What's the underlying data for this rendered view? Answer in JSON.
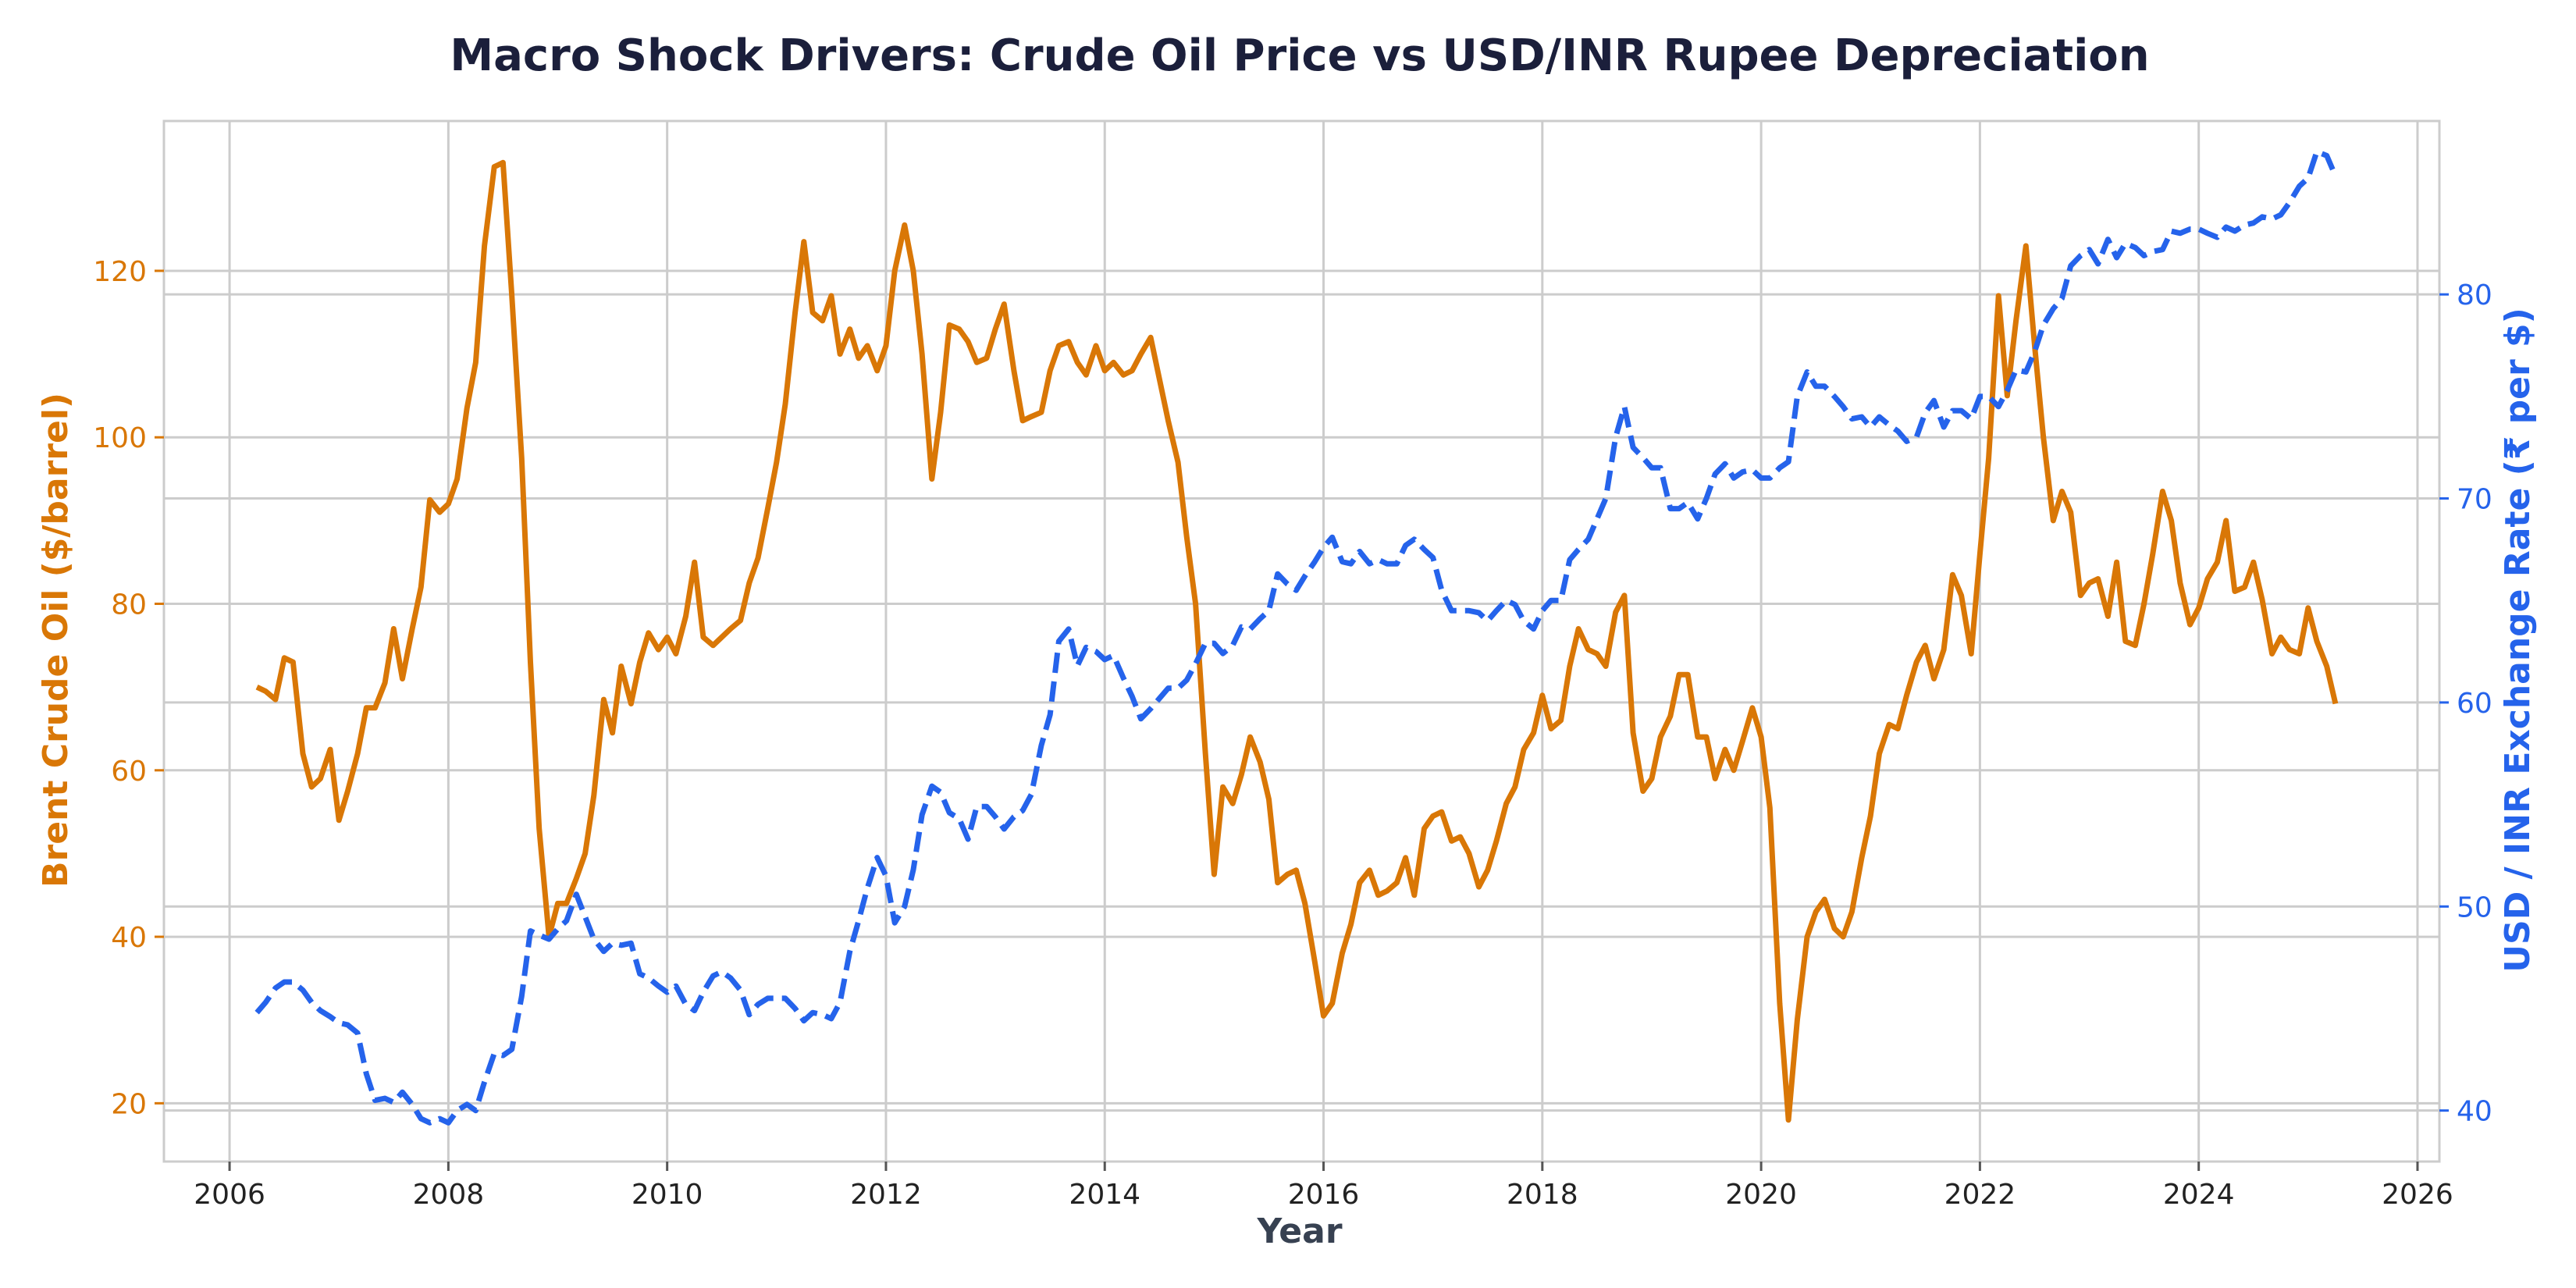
{
  "chart_data": {
    "type": "line",
    "title": "Macro Shock Drivers: Crude Oil Price vs USD/INR Rupee Depreciation",
    "xlabel": "Year",
    "ylabel_left": "Brent Crude Oil ($/barrel)",
    "ylabel_right": "USD / INR Exchange Rate (₹ per $)",
    "xlim": [
      2005.4,
      2026.2
    ],
    "ylim_left": [
      13,
      138
    ],
    "ylim_right": [
      37.5,
      88.5
    ],
    "x_ticks": [
      2006,
      2008,
      2010,
      2012,
      2014,
      2016,
      2018,
      2020,
      2022,
      2024,
      2026
    ],
    "y_ticks_left": [
      20,
      40,
      60,
      80,
      100,
      120
    ],
    "y_ticks_right": [
      40,
      50,
      60,
      70,
      80
    ],
    "grid": true,
    "colors": {
      "oil": "#d97706",
      "inr": "#2563eb",
      "title": "#1b1f3b",
      "xlabel": "#374151",
      "grid": "#cccccc",
      "spine": "#cccccc"
    },
    "series": [
      {
        "name": "Brent Crude Oil ($/barrel)",
        "axis": "left",
        "style": "solid",
        "x": [
          2006.25,
          2006.33,
          2006.42,
          2006.5,
          2006.58,
          2006.67,
          2006.75,
          2006.83,
          2006.92,
          2007.0,
          2007.08,
          2007.17,
          2007.25,
          2007.33,
          2007.42,
          2007.5,
          2007.58,
          2007.67,
          2007.75,
          2007.83,
          2007.92,
          2008.0,
          2008.08,
          2008.17,
          2008.25,
          2008.33,
          2008.42,
          2008.5,
          2008.58,
          2008.67,
          2008.75,
          2008.83,
          2008.92,
          2009.0,
          2009.08,
          2009.17,
          2009.25,
          2009.33,
          2009.42,
          2009.5,
          2009.58,
          2009.67,
          2009.75,
          2009.83,
          2009.92,
          2010.0,
          2010.08,
          2010.17,
          2010.25,
          2010.33,
          2010.42,
          2010.5,
          2010.58,
          2010.67,
          2010.75,
          2010.83,
          2010.92,
          2011.0,
          2011.08,
          2011.17,
          2011.25,
          2011.33,
          2011.42,
          2011.5,
          2011.58,
          2011.67,
          2011.75,
          2011.83,
          2011.92,
          2012.0,
          2012.08,
          2012.17,
          2012.25,
          2012.33,
          2012.42,
          2012.5,
          2012.58,
          2012.67,
          2012.75,
          2012.83,
          2012.92,
          2013.0,
          2013.08,
          2013.17,
          2013.25,
          2013.33,
          2013.42,
          2013.5,
          2013.58,
          2013.67,
          2013.75,
          2013.83,
          2013.92,
          2014.0,
          2014.08,
          2014.17,
          2014.25,
          2014.33,
          2014.42,
          2014.5,
          2014.58,
          2014.67,
          2014.75,
          2014.83,
          2014.92,
          2015.0,
          2015.08,
          2015.17,
          2015.25,
          2015.33,
          2015.42,
          2015.5,
          2015.58,
          2015.67,
          2015.75,
          2015.83,
          2015.92,
          2016.0,
          2016.08,
          2016.17,
          2016.25,
          2016.33,
          2016.42,
          2016.5,
          2016.58,
          2016.67,
          2016.75,
          2016.83,
          2016.92,
          2017.0,
          2017.08,
          2017.17,
          2017.25,
          2017.33,
          2017.42,
          2017.5,
          2017.58,
          2017.67,
          2017.75,
          2017.83,
          2017.92,
          2018.0,
          2018.08,
          2018.17,
          2018.25,
          2018.33,
          2018.42,
          2018.5,
          2018.58,
          2018.67,
          2018.75,
          2018.83,
          2018.92,
          2019.0,
          2019.08,
          2019.17,
          2019.25,
          2019.33,
          2019.42,
          2019.5,
          2019.58,
          2019.67,
          2019.75,
          2019.83,
          2019.92,
          2020.0,
          2020.08,
          2020.17,
          2020.25,
          2020.33,
          2020.42,
          2020.5,
          2020.58,
          2020.67,
          2020.75,
          2020.83,
          2020.92,
          2021.0,
          2021.08,
          2021.17,
          2021.25,
          2021.33,
          2021.42,
          2021.5,
          2021.58,
          2021.67,
          2021.75,
          2021.83,
          2021.92,
          2022.0,
          2022.08,
          2022.17,
          2022.25,
          2022.33,
          2022.42,
          2022.5,
          2022.58,
          2022.67,
          2022.75,
          2022.83,
          2022.92,
          2023.0,
          2023.08,
          2023.17,
          2023.25,
          2023.33,
          2023.42,
          2023.5,
          2023.58,
          2023.67,
          2023.75,
          2023.83,
          2023.92,
          2024.0,
          2024.08,
          2024.17,
          2024.25,
          2024.33,
          2024.42,
          2024.5,
          2024.58,
          2024.67,
          2024.75,
          2024.83,
          2024.92,
          2025.0,
          2025.08,
          2025.17,
          2025.25
        ],
        "y": [
          70,
          69.5,
          68.5,
          73.5,
          73,
          62,
          58,
          59,
          62.5,
          54,
          57.5,
          62,
          67.5,
          67.5,
          70.5,
          77,
          71,
          77,
          82,
          92.5,
          91,
          92,
          95,
          103.5,
          109,
          123,
          132.5,
          133,
          117,
          97.5,
          73,
          53,
          40,
          44,
          44,
          47,
          50,
          57,
          68.5,
          64.5,
          72.5,
          68,
          73,
          76.5,
          74.5,
          76,
          74,
          78.5,
          85,
          76,
          75,
          76,
          77,
          78,
          82.5,
          85.5,
          91.5,
          97,
          104,
          115,
          123.5,
          115,
          114,
          117,
          110,
          113,
          109.5,
          111,
          108,
          111,
          120,
          125.5,
          120,
          110,
          95,
          103,
          113.5,
          113,
          111.5,
          109,
          109.5,
          113,
          116,
          108,
          102,
          102.5,
          103,
          108,
          111,
          111.5,
          109,
          107.5,
          111,
          108,
          109,
          107.5,
          108,
          110,
          112,
          107,
          102,
          97,
          88,
          80,
          62,
          47.5,
          58,
          56,
          59.5,
          64,
          61,
          56.5,
          46.5,
          47.5,
          48,
          44,
          37,
          30.5,
          32,
          38,
          41.5,
          46.5,
          48,
          45,
          45.5,
          46.5,
          49.5,
          45,
          53,
          54.5,
          55,
          51.5,
          52,
          50,
          46,
          48,
          51.5,
          56,
          58,
          62.5,
          64.5,
          69,
          65,
          66,
          72.5,
          77,
          74.5,
          74,
          72.5,
          79,
          81,
          64.5,
          57.5,
          59,
          64,
          66.5,
          71.5,
          71.5,
          64,
          64,
          59,
          62.5,
          60,
          63.5,
          67.5,
          64,
          55.5,
          32,
          18,
          30,
          40,
          43,
          44.5,
          41,
          40,
          43,
          49.5,
          54.5,
          62,
          65.5,
          65,
          69,
          73,
          75,
          71,
          74.5,
          83.5,
          81,
          74,
          86,
          97.5,
          117,
          105,
          114,
          123,
          111,
          100,
          90,
          93.5,
          91,
          81,
          82.5,
          83,
          78.5,
          85,
          75.5,
          75,
          80,
          86,
          93.5,
          90,
          82.5,
          77.5,
          79.5,
          83,
          85,
          90,
          81.5,
          82,
          85,
          80.5,
          74,
          76,
          74.5,
          74,
          79.5,
          75.5,
          72.5,
          68
        ]
      },
      {
        "name": "USD / INR Exchange Rate (₹ per $)",
        "axis": "right",
        "style": "dashed",
        "x": [
          2006.25,
          2006.33,
          2006.42,
          2006.5,
          2006.58,
          2006.67,
          2006.75,
          2006.83,
          2006.92,
          2007.0,
          2007.08,
          2007.17,
          2007.25,
          2007.33,
          2007.42,
          2007.5,
          2007.58,
          2007.67,
          2007.75,
          2007.83,
          2007.92,
          2008.0,
          2008.08,
          2008.17,
          2008.25,
          2008.33,
          2008.42,
          2008.5,
          2008.58,
          2008.67,
          2008.75,
          2008.83,
          2008.92,
          2009.0,
          2009.08,
          2009.17,
          2009.25,
          2009.33,
          2009.42,
          2009.5,
          2009.58,
          2009.67,
          2009.75,
          2009.83,
          2009.92,
          2010.0,
          2010.08,
          2010.17,
          2010.25,
          2010.33,
          2010.42,
          2010.5,
          2010.58,
          2010.67,
          2010.75,
          2010.83,
          2010.92,
          2011.0,
          2011.08,
          2011.17,
          2011.25,
          2011.33,
          2011.42,
          2011.5,
          2011.58,
          2011.67,
          2011.75,
          2011.83,
          2011.92,
          2012.0,
          2012.08,
          2012.17,
          2012.25,
          2012.33,
          2012.42,
          2012.5,
          2012.58,
          2012.67,
          2012.75,
          2012.83,
          2012.92,
          2013.0,
          2013.08,
          2013.17,
          2013.25,
          2013.33,
          2013.42,
          2013.5,
          2013.58,
          2013.67,
          2013.75,
          2013.83,
          2013.92,
          2014.0,
          2014.08,
          2014.17,
          2014.25,
          2014.33,
          2014.42,
          2014.5,
          2014.58,
          2014.67,
          2014.75,
          2014.83,
          2014.92,
          2015.0,
          2015.08,
          2015.17,
          2015.25,
          2015.33,
          2015.42,
          2015.5,
          2015.58,
          2015.67,
          2015.75,
          2015.83,
          2015.92,
          2016.0,
          2016.08,
          2016.17,
          2016.25,
          2016.33,
          2016.42,
          2016.5,
          2016.58,
          2016.67,
          2016.75,
          2016.83,
          2016.92,
          2017.0,
          2017.08,
          2017.17,
          2017.25,
          2017.33,
          2017.42,
          2017.5,
          2017.58,
          2017.67,
          2017.75,
          2017.83,
          2017.92,
          2018.0,
          2018.08,
          2018.17,
          2018.25,
          2018.33,
          2018.42,
          2018.5,
          2018.58,
          2018.67,
          2018.75,
          2018.83,
          2018.92,
          2019.0,
          2019.08,
          2019.17,
          2019.25,
          2019.33,
          2019.42,
          2019.5,
          2019.58,
          2019.67,
          2019.75,
          2019.83,
          2019.92,
          2020.0,
          2020.08,
          2020.17,
          2020.25,
          2020.33,
          2020.42,
          2020.5,
          2020.58,
          2020.67,
          2020.75,
          2020.83,
          2020.92,
          2021.0,
          2021.08,
          2021.17,
          2021.25,
          2021.33,
          2021.42,
          2021.5,
          2021.58,
          2021.67,
          2021.75,
          2021.83,
          2021.92,
          2022.0,
          2022.08,
          2022.17,
          2022.25,
          2022.33,
          2022.42,
          2022.5,
          2022.58,
          2022.67,
          2022.75,
          2022.83,
          2022.92,
          2023.0,
          2023.08,
          2023.17,
          2023.25,
          2023.33,
          2023.42,
          2023.5,
          2023.58,
          2023.67,
          2023.75,
          2023.83,
          2023.92,
          2024.0,
          2024.08,
          2024.17,
          2024.25,
          2024.33,
          2024.42,
          2024.5,
          2024.58,
          2024.67,
          2024.75,
          2024.83,
          2024.92,
          2025.0,
          2025.08,
          2025.17,
          2025.25
        ],
        "y": [
          44.8,
          45.3,
          46,
          46.3,
          46.3,
          45.9,
          45.3,
          44.9,
          44.6,
          44.3,
          44.2,
          43.8,
          41.8,
          40.5,
          40.6,
          40.4,
          40.9,
          40.3,
          39.6,
          39.4,
          39.6,
          39.4,
          40,
          40.3,
          40,
          41.4,
          42.8,
          42.7,
          43,
          45.6,
          48.8,
          48.6,
          48.4,
          48.9,
          49.3,
          50.6,
          49.5,
          48.4,
          47.8,
          48.2,
          48.1,
          48.2,
          46.7,
          46.5,
          46.1,
          45.8,
          46.1,
          45.2,
          44.9,
          45.8,
          46.6,
          46.8,
          46.5,
          45.9,
          44.7,
          45.2,
          45.5,
          45.5,
          45.5,
          45,
          44.4,
          44.8,
          44.7,
          44.5,
          45.3,
          47.8,
          49.3,
          50.9,
          52.4,
          51.5,
          49.2,
          50,
          51.8,
          54.5,
          55.9,
          55.6,
          54.6,
          54.3,
          53.3,
          54.9,
          54.9,
          54.4,
          53.8,
          54.4,
          54.7,
          55.5,
          57.9,
          59.4,
          63,
          63.6,
          61.8,
          62.7,
          62.5,
          62.1,
          62.3,
          61.2,
          60.3,
          59.2,
          59.7,
          60.2,
          60.7,
          60.7,
          61.1,
          61.9,
          62.9,
          62.9,
          62.4,
          62.8,
          63.7,
          63.6,
          64.1,
          64.5,
          66.3,
          65.8,
          65.5,
          66.2,
          66.9,
          67.6,
          68.1,
          66.9,
          66.8,
          67.4,
          66.8,
          67,
          66.8,
          66.8,
          67.7,
          68,
          67.5,
          67.1,
          65.5,
          64.5,
          64.5,
          64.5,
          64.4,
          64,
          64.5,
          65,
          64.8,
          64,
          63.6,
          64.5,
          65,
          65,
          67,
          67.5,
          68,
          69,
          70,
          73,
          74.5,
          72.5,
          72,
          71.5,
          71.5,
          69.5,
          69.5,
          69.8,
          69,
          70,
          71.2,
          71.7,
          71,
          71.3,
          71.4,
          71,
          71,
          71.5,
          71.8,
          75,
          76.2,
          75.5,
          75.5,
          75,
          74.5,
          73.9,
          74,
          73.5,
          74,
          73.6,
          73.3,
          72.8,
          73,
          74.2,
          74.8,
          73.5,
          74.3,
          74.3,
          73.9,
          75,
          75,
          74.5,
          75.3,
          76.3,
          76.2,
          77.2,
          78.5,
          79.3,
          79.8,
          81.4,
          81.9,
          82.2,
          81.5,
          82.7,
          81.8,
          82.5,
          82.3,
          81.9,
          82.1,
          82.2,
          83.1,
          83,
          83.2,
          83.2,
          83,
          82.8,
          83.3,
          83.1,
          83.4,
          83.5,
          83.8,
          83.7,
          83.9,
          84.5,
          85.3,
          85.7,
          87,
          86.8,
          85.8
        ]
      }
    ]
  }
}
